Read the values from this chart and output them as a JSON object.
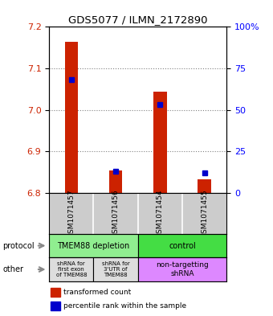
{
  "title": "GDS5077 / ILMN_2172890",
  "samples": [
    "GSM1071457",
    "GSM1071456",
    "GSM1071454",
    "GSM1071455"
  ],
  "red_values": [
    7.163,
    6.853,
    7.043,
    6.833
  ],
  "blue_values_percentile": [
    68,
    13,
    53,
    12
  ],
  "ylim": [
    6.8,
    7.2
  ],
  "yticks_left": [
    6.8,
    6.9,
    7.0,
    7.1,
    7.2
  ],
  "yticks_right": [
    0,
    25,
    50,
    75,
    100
  ],
  "right_axis_labels": [
    "0",
    "25",
    "50",
    "75",
    "100%"
  ],
  "protocol_labels": [
    "TMEM88 depletion",
    "control"
  ],
  "protocol_bg_left": "#90EE90",
  "protocol_bg_right": "#44dd44",
  "other_bg_gray": "#dddddd",
  "other_bg_purple": "#dd88ff",
  "sample_bg_color": "#cccccc",
  "red_color": "#cc2200",
  "blue_color": "#0000cc",
  "legend_red": "transformed count",
  "legend_blue": "percentile rank within the sample",
  "other_label1": "shRNA for\nfirst exon\nof TMEM88",
  "other_label2": "shRNA for\n3'UTR of\nTMEM88",
  "other_label3": "non-targetting\nshRNA"
}
